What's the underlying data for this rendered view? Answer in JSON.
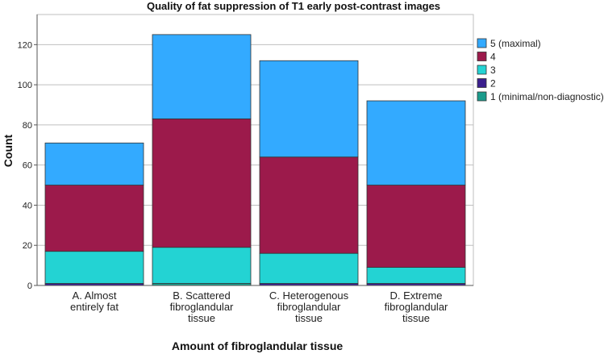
{
  "chart_data": {
    "type": "bar",
    "stacked": true,
    "title": "Quality of fat suppression of T1 early post-contrast images",
    "xlabel": "Amount of fibroglandular tissue",
    "ylabel": "Count",
    "categories": [
      [
        "A. Almost",
        "entirely fat"
      ],
      [
        "B. Scattered",
        "fibroglandular",
        "tissue"
      ],
      [
        "C. Heterogenous",
        "fibroglandular",
        "tissue"
      ],
      [
        "D. Extreme",
        "fibroglandular",
        "tissue"
      ]
    ],
    "series": [
      {
        "name": "1 (minimal/non-diagnostic)",
        "color": "#1a9c8c",
        "values": [
          0,
          1,
          0,
          0
        ]
      },
      {
        "name": "2",
        "color": "#3b1f8e",
        "values": [
          1,
          0,
          1,
          1
        ]
      },
      {
        "name": "3",
        "color": "#23d3d3",
        "values": [
          16,
          18,
          15,
          8
        ]
      },
      {
        "name": "4",
        "color": "#9c1a4b",
        "values": [
          33,
          64,
          48,
          41
        ]
      },
      {
        "name": "5 (maximal)",
        "color": "#33aaff",
        "values": [
          21,
          42,
          48,
          42
        ]
      }
    ],
    "ylim": [
      0,
      135
    ],
    "yticks": [
      0,
      20,
      40,
      60,
      80,
      100,
      120
    ],
    "grid": true,
    "legend_position": "right"
  }
}
